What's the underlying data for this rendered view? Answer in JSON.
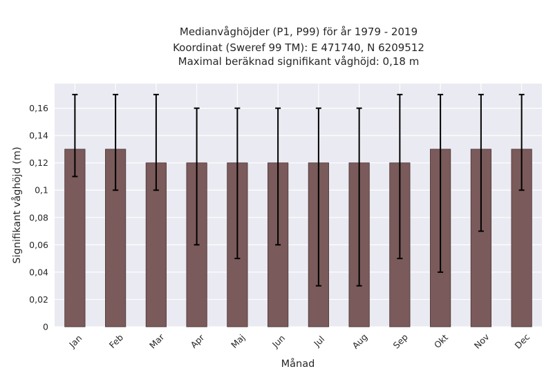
{
  "chart_data": {
    "type": "bar",
    "title_lines": [
      "Medianvåghöjder (P1, P99) för år 1979 - 2019",
      "Koordinat (Sweref 99 TM): E 471740, N 6209512",
      "Maximal beräknad signifikant våghöjd: 0,18 m"
    ],
    "xlabel": "Månad",
    "ylabel": "Signifikant våghöjd (m)",
    "categories": [
      "Jan",
      "Feb",
      "Mar",
      "Apr",
      "Maj",
      "Jun",
      "Jul",
      "Aug",
      "Sep",
      "Okt",
      "Nov",
      "Dec"
    ],
    "series": [
      {
        "values": [
          0.13,
          0.13,
          0.12,
          0.12,
          0.12,
          0.12,
          0.12,
          0.12,
          0.12,
          0.13,
          0.13,
          0.13
        ],
        "lower": [
          0.11,
          0.1,
          0.1,
          0.06,
          0.05,
          0.06,
          0.03,
          0.03,
          0.05,
          0.04,
          0.07,
          0.1
        ],
        "upper": [
          0.17,
          0.17,
          0.17,
          0.16,
          0.16,
          0.16,
          0.16,
          0.16,
          0.17,
          0.17,
          0.17,
          0.17
        ]
      }
    ],
    "yticks": [
      0,
      0.02,
      0.04,
      0.06,
      0.08,
      0.1,
      0.12,
      0.14,
      0.16
    ],
    "ytick_labels": [
      "0",
      "0,02",
      "0,04",
      "0,06",
      "0,08",
      "0,1",
      "0,12",
      "0,14",
      "0,16"
    ],
    "ylim": [
      0,
      0.178
    ],
    "grid": true,
    "colors": {
      "bar": "#7a5a5a",
      "bar_edge": "#4a3434",
      "plot_bg": "#eaeaf2",
      "grid": "#ffffff",
      "errorbar": "#000000",
      "text": "#262626"
    }
  }
}
